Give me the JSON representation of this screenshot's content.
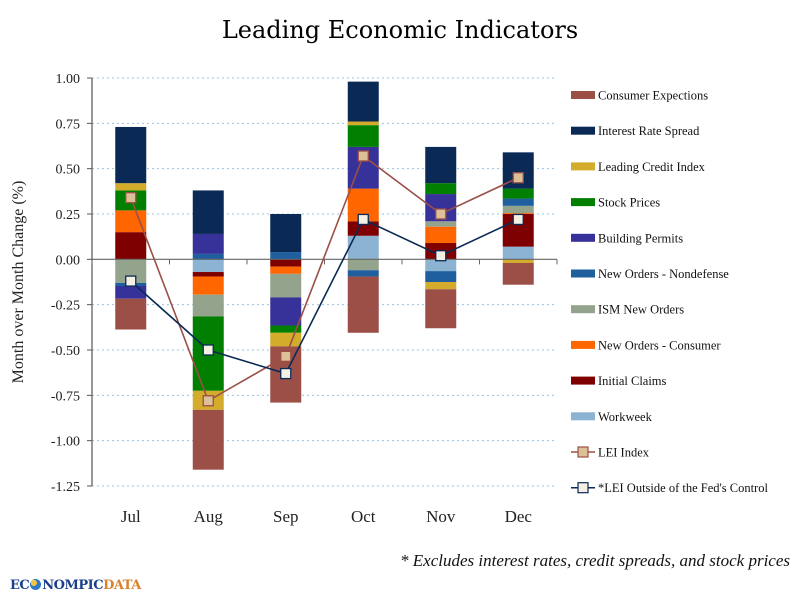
{
  "chart_data": {
    "type": "bar",
    "stacked": true,
    "title": "Leading Economic Indicators",
    "xlabel": "",
    "ylabel": "Month over Month Change (%)",
    "ylim": [
      -1.25,
      1.0
    ],
    "yticks": [
      1.0,
      0.75,
      0.5,
      0.25,
      0.0,
      -0.25,
      -0.5,
      -0.75,
      -1.0,
      -1.25
    ],
    "ytick_labels": [
      "1.00",
      "0.75",
      "0.50",
      "0.25",
      "0.00",
      "-0.25",
      "-0.50",
      "-0.75",
      "-1.00",
      "-1.25"
    ],
    "grid": "horizontal dotted",
    "legend_position": "right",
    "categories": [
      "Jul",
      "Aug",
      "Sep",
      "Oct",
      "Nov",
      "Dec"
    ],
    "series": [
      {
        "name": "Workweek",
        "kind": "bar",
        "color": "#8db3d3",
        "values": [
          0.0,
          -0.07,
          0.0,
          0.13,
          -0.065,
          0.07
        ]
      },
      {
        "name": "Initial Claims",
        "kind": "bar",
        "color": "#7f0000",
        "values": [
          0.15,
          -0.025,
          -0.04,
          0.08,
          0.09,
          0.18
        ]
      },
      {
        "name": "New Orders - Consumer",
        "kind": "bar",
        "color": "#ff6600",
        "values": [
          0.12,
          -0.1,
          -0.04,
          0.18,
          0.09,
          0.005
        ]
      },
      {
        "name": "ISM New Orders",
        "kind": "bar",
        "color": "#94a38b",
        "values": [
          -0.13,
          -0.12,
          -0.13,
          -0.06,
          0.03,
          0.04
        ]
      },
      {
        "name": "New Orders - Nondefense",
        "kind": "bar",
        "color": "#1f5f9e",
        "values": [
          -0.017,
          0.03,
          0.04,
          -0.035,
          -0.06,
          0.04
        ]
      },
      {
        "name": "Building Permits",
        "kind": "bar",
        "color": "#37319a",
        "values": [
          -0.07,
          0.11,
          -0.155,
          0.23,
          0.15,
          0.0
        ]
      },
      {
        "name": "Stock Prices",
        "kind": "bar",
        "color": "#007f00",
        "values": [
          0.11,
          -0.41,
          -0.04,
          0.12,
          0.06,
          0.055
        ]
      },
      {
        "name": "Leading Credit Index",
        "kind": "bar",
        "color": "#d4ac2b",
        "values": [
          0.04,
          -0.105,
          -0.075,
          0.02,
          -0.04,
          -0.02
        ]
      },
      {
        "name": "Interest Rate Spread",
        "kind": "bar",
        "color": "#0a2a55",
        "values": [
          0.31,
          0.24,
          0.21,
          0.22,
          0.2,
          0.2
        ]
      },
      {
        "name": "Consumer Expections",
        "kind": "bar",
        "color": "#9b4f47",
        "values": [
          -0.17,
          -0.33,
          -0.31,
          -0.31,
          -0.215,
          -0.12
        ]
      },
      {
        "name": "LEI Index",
        "kind": "line",
        "color": "#9b4f47",
        "marker_fill": "#dcc097",
        "values": [
          0.34,
          -0.78,
          -0.535,
          0.57,
          0.25,
          0.45
        ]
      },
      {
        "name": "*LEI Outside of the Fed's Control",
        "kind": "line",
        "color": "#0a2a55",
        "marker_fill": "#f4f1e4",
        "values": [
          -0.12,
          -0.5,
          -0.63,
          0.22,
          0.02,
          0.22
        ]
      }
    ],
    "legend_order": [
      "Consumer Expections",
      "Interest Rate Spread",
      "Leading Credit Index",
      "Stock Prices",
      "Building Permits",
      "New Orders - Nondefense",
      "ISM New Orders",
      "New Orders - Consumer",
      "Initial Claims",
      "Workweek",
      "LEI Index",
      "*LEI Outside of the Fed's Control"
    ]
  },
  "footnote": "* Excludes interest rates, credit spreads, and stock prices",
  "logo": {
    "part1": "EC",
    "part2": "NOMPIC",
    "part3": "DATA"
  }
}
